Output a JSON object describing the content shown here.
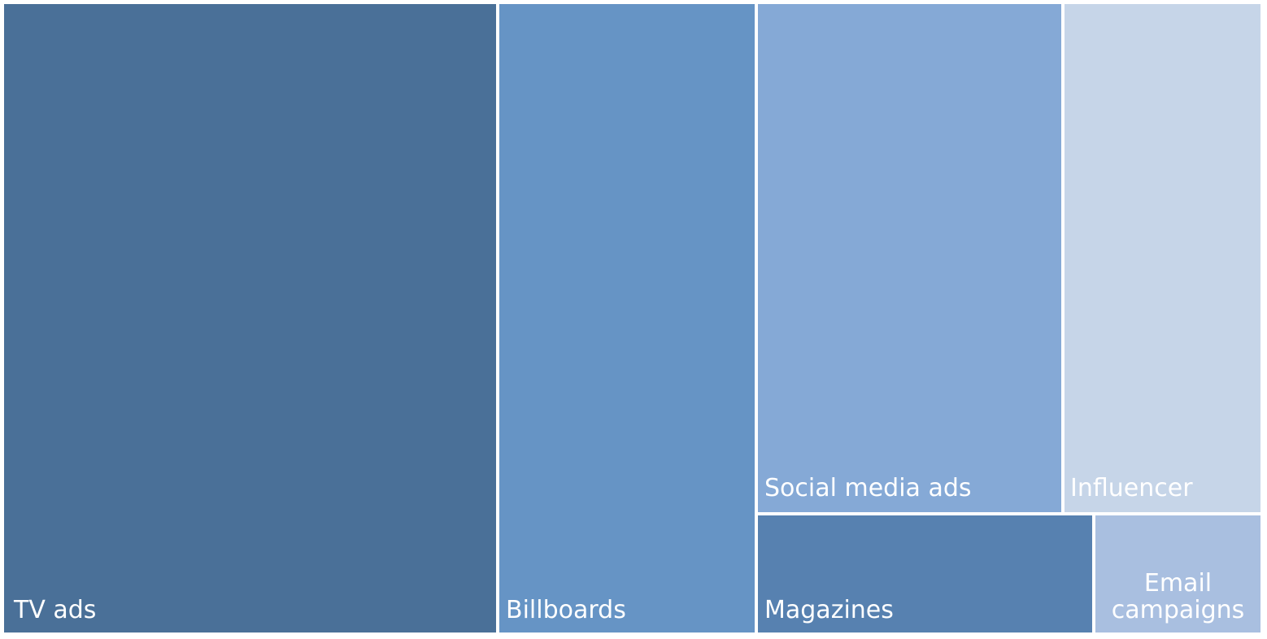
{
  "chart_data": {
    "type": "treemap",
    "title": "",
    "items": [
      {
        "label": "TV ads",
        "color": "#4a7098"
      },
      {
        "label": "Billboards",
        "color": "#6694c5"
      },
      {
        "label": "Social media ads",
        "color": "#85a9d6"
      },
      {
        "label": "Influencer",
        "color": "#c6d5e8"
      },
      {
        "label": "Magazines",
        "color": "#5781b0"
      },
      {
        "label": "Email\ncampaigns",
        "color": "#a9bfe0"
      }
    ]
  }
}
